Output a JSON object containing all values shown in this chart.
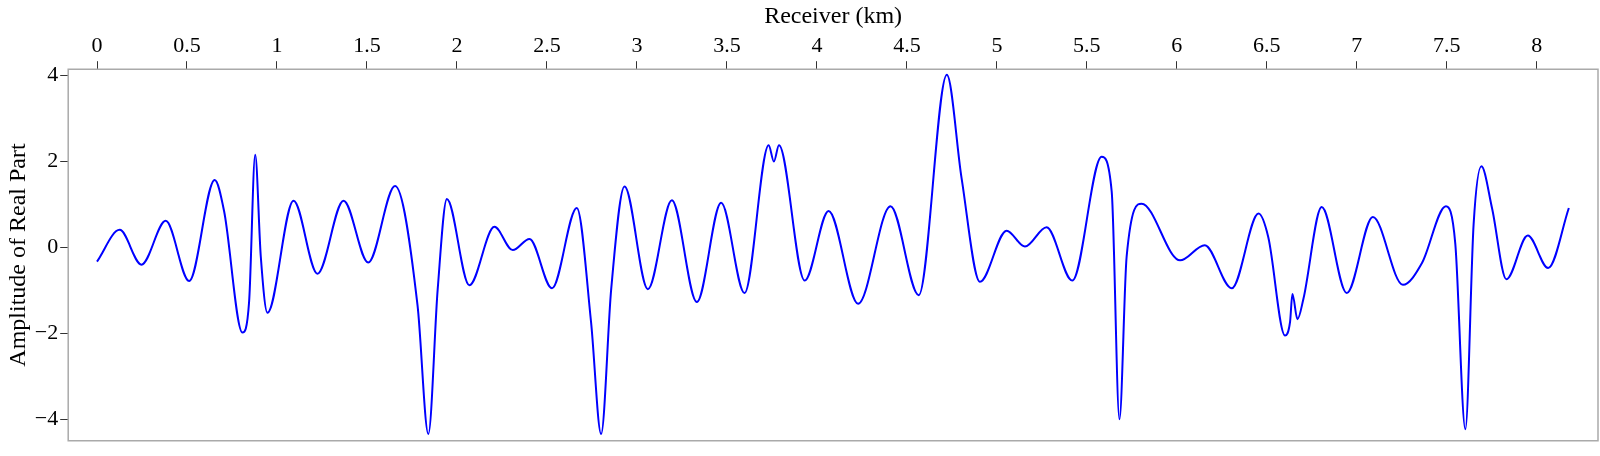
{
  "chart_data": {
    "type": "line",
    "xlabel": "Receiver (km)",
    "ylabel": "Amplitude of Real Part",
    "xlim": [
      -0.16,
      8.34
    ],
    "ylim": [
      -4.5,
      4.15
    ],
    "xticks": [
      0,
      0.5,
      1,
      1.5,
      2,
      2.5,
      3,
      3.5,
      4,
      4.5,
      5,
      5.5,
      6,
      6.5,
      7,
      7.5,
      8
    ],
    "yticks": [
      {
        "value": -4,
        "label": "−4"
      },
      {
        "value": -2,
        "label": "−2"
      },
      0,
      2,
      4
    ],
    "grid": false,
    "marker": "none",
    "line_style": "solid",
    "legend": false,
    "series": [
      {
        "color": "#0000ff",
        "x": [
          0,
          0.126,
          0.247,
          0.382,
          0.512,
          0.654,
          0.706,
          0.808,
          0.845,
          0.879,
          0.91,
          0.947,
          1.092,
          1.225,
          1.37,
          1.507,
          1.656,
          1.781,
          1.841,
          1.893,
          1.944,
          2.069,
          2.208,
          2.31,
          2.403,
          2.528,
          2.666,
          2.745,
          2.801,
          2.857,
          2.931,
          3.061,
          3.194,
          3.333,
          3.468,
          3.598,
          3.732,
          3.761,
          3.789,
          3.932,
          4.065,
          4.229,
          4.409,
          4.566,
          4.722,
          4.804,
          4.906,
          5.054,
          5.156,
          5.276,
          5.419,
          5.582,
          5.638,
          5.681,
          5.721,
          5.804,
          6.018,
          6.155,
          6.305,
          6.454,
          6.508,
          6.601,
          6.629,
          6.642,
          6.67,
          6.703,
          6.805,
          6.944,
          7.089,
          7.256,
          7.362,
          7.495,
          7.547,
          7.603,
          7.649,
          7.692,
          7.751,
          7.831,
          7.95,
          8.063,
          8.178
        ],
        "values": [
          -0.33,
          0.41,
          -0.4,
          0.62,
          -0.78,
          1.57,
          0.85,
          -1.98,
          -1.27,
          2.16,
          -0.21,
          -1.52,
          1.09,
          -0.61,
          1.09,
          -0.35,
          1.43,
          -1.35,
          -4.34,
          -0.97,
          1.13,
          -0.88,
          0.48,
          -0.06,
          0.2,
          -0.95,
          0.92,
          -1.73,
          -4.34,
          -0.97,
          1.42,
          -0.97,
          1.1,
          -1.27,
          1.04,
          -1.06,
          2.38,
          2.0,
          2.38,
          -0.77,
          0.85,
          -1.31,
          0.96,
          -1.11,
          4.02,
          1.61,
          -0.8,
          0.39,
          0.02,
          0.47,
          -0.77,
          2.11,
          1.3,
          -4.0,
          -0.21,
          1.02,
          -0.3,
          0.05,
          -0.95,
          0.79,
          0.24,
          -2.05,
          -1.73,
          -1.08,
          -1.67,
          -1.2,
          0.94,
          -1.06,
          0.71,
          -0.87,
          -0.36,
          0.96,
          0.09,
          -4.23,
          0.55,
          1.89,
          0.92,
          -0.74,
          0.28,
          -0.48,
          0.92
        ]
      }
    ]
  }
}
